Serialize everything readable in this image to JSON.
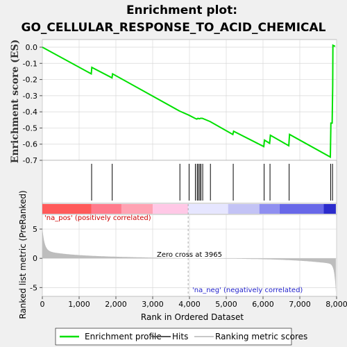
{
  "chart_data": {
    "title_line1": "Enrichment plot:",
    "title_line2": "GO_CELLULAR_RESPONSE_TO_ACID_CHEMICAL",
    "type": "line",
    "es_ylabel": "Enrichment score (ES)",
    "es_ylim": [
      -0.7,
      0.0
    ],
    "es_yticks": [
      "0.0",
      "-0.1",
      "-0.2",
      "-0.3",
      "-0.4",
      "-0.5",
      "-0.6",
      "-0.7"
    ],
    "es_ytick_values": [
      0.0,
      -0.1,
      -0.2,
      -0.3,
      -0.4,
      -0.5,
      -0.6,
      -0.7
    ],
    "xlim": [
      0,
      8000
    ],
    "xticks": [
      "0",
      "1,000",
      "2,000",
      "3,000",
      "4,000",
      "5,000",
      "6,000",
      "7,000",
      "8,000"
    ],
    "xtick_values": [
      0,
      1000,
      2000,
      3000,
      4000,
      5000,
      6000,
      7000,
      8000
    ],
    "xlabel": "Rank in Ordered Dataset",
    "rank_ylabel": "Ranked list metric (PreRanked)",
    "rank_ylim": [
      -6.5,
      7.5
    ],
    "rank_yticks": [
      "5",
      "0",
      "-5"
    ],
    "rank_ytick_values": [
      5,
      0,
      -5
    ],
    "enrichment_profile": [
      [
        0,
        0.0
      ],
      [
        1330,
        -0.165
      ],
      [
        1345,
        -0.125
      ],
      [
        1895,
        -0.19
      ],
      [
        1910,
        -0.165
      ],
      [
        3730,
        -0.395
      ],
      [
        3980,
        -0.42
      ],
      [
        4150,
        -0.44
      ],
      [
        4200,
        -0.445
      ],
      [
        4230,
        -0.44
      ],
      [
        4270,
        -0.443
      ],
      [
        4300,
        -0.44
      ],
      [
        4350,
        -0.44
      ],
      [
        4560,
        -0.46
      ],
      [
        5180,
        -0.54
      ],
      [
        5200,
        -0.52
      ],
      [
        6020,
        -0.615
      ],
      [
        6040,
        -0.575
      ],
      [
        6180,
        -0.595
      ],
      [
        6200,
        -0.545
      ],
      [
        6700,
        -0.61
      ],
      [
        6720,
        -0.54
      ],
      [
        7830,
        -0.68
      ],
      [
        7845,
        -0.47
      ],
      [
        7880,
        -0.47
      ],
      [
        7895,
        -0.24
      ],
      [
        7900,
        0.012
      ],
      [
        7960,
        0.005
      ]
    ],
    "hits": [
      1340,
      1900,
      3740,
      3990,
      4160,
      4210,
      4240,
      4280,
      4310,
      4360,
      4570,
      5190,
      6030,
      6190,
      6710,
      7840,
      7890
    ],
    "zero_cross": 3965,
    "zero_cross_label": "Zero cross at 3965",
    "na_pos_label": "'na_pos' (positively correlated)",
    "na_neg_label": "'na_neg' (negatively correlated)",
    "legend": [
      {
        "label": "Enrichment profile",
        "color": "#00e000"
      },
      {
        "label": "Hits",
        "color": "#555555"
      },
      {
        "label": "Ranking metric scores",
        "color": "#c8c8c8"
      }
    ],
    "colors": {
      "profile": "#00e000",
      "hits": "#000000",
      "metric": "#bdbdbd",
      "background": "#f0f0f0",
      "panel": "#ffffff"
    },
    "colorbar_segments": [
      {
        "from": 0,
        "to": 1330,
        "color": "#ff5a5a"
      },
      {
        "from": 1330,
        "to": 2150,
        "color": "#ff7b8c"
      },
      {
        "from": 2150,
        "to": 3000,
        "color": "#ffa3b3"
      },
      {
        "from": 3000,
        "to": 3965,
        "color": "#ffc8e6"
      },
      {
        "from": 3965,
        "to": 5050,
        "color": "#e6e6ff"
      },
      {
        "from": 5050,
        "to": 5900,
        "color": "#c3c3f5"
      },
      {
        "from": 5900,
        "to": 6450,
        "color": "#8f8ff0"
      },
      {
        "from": 6450,
        "to": 7650,
        "color": "#6868e8"
      },
      {
        "from": 7650,
        "to": 7980,
        "color": "#2c2ccc"
      }
    ]
  }
}
